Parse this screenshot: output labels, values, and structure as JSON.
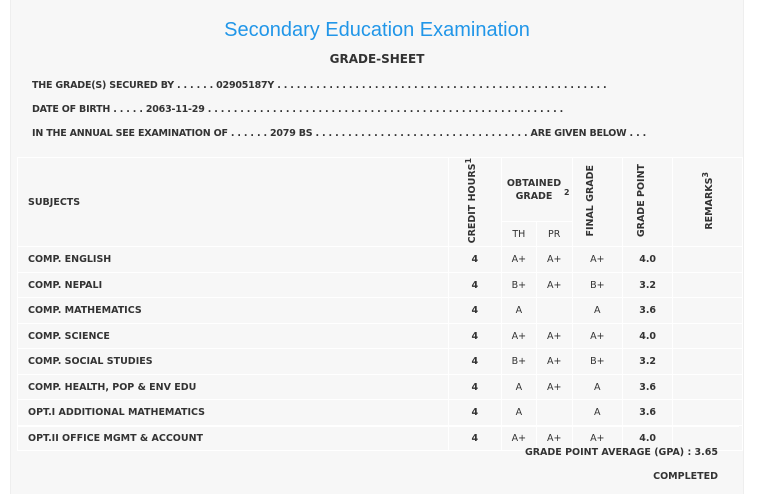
{
  "header": {
    "title": "Secondary Education Examination",
    "subtitle": "GRADE-SHEET"
  },
  "info": {
    "line1": "THE GRADE(S) SECURED BY . . . . . . 02905187Y . . . . . . . . . . . . . . . . . . . . . . . . . . . . . . . . . . . . . . . . . . . . . . . . . . .",
    "line2": "DATE OF BIRTH . . . . . 2063-11-29 . . . . . . . . . . . . . . . . . . . . . . . . . . . . . . . . . . . . . . . . . . . . . . . . . . . . . . .",
    "line3": "IN THE ANNUAL SEE EXAMINATION OF . . . . . . 2079 BS . . . . . . . . . . . . . . . . . . . . . . . . . . . . . . . . . ARE GIVEN BELOW . . ."
  },
  "table": {
    "headers": {
      "subjects": "SUBJECTS",
      "credit": "CREDIT HOURS",
      "credit_sup": "1",
      "obtained": "OBTAINED GRADE",
      "obtained_sup": "2",
      "th": "TH",
      "pr": "PR",
      "final": "FINAL GRADE",
      "gp": "GRADE POINT",
      "remarks": "REMARKS",
      "remarks_sup": "3"
    },
    "rows": [
      {
        "subject": "COMP. ENGLISH",
        "credit": "4",
        "th": "A+",
        "pr": "A+",
        "final": "A+",
        "gp": "4.0",
        "remarks": ""
      },
      {
        "subject": "COMP. NEPALI",
        "credit": "4",
        "th": "B+",
        "pr": "A+",
        "final": "B+",
        "gp": "3.2",
        "remarks": ""
      },
      {
        "subject": "COMP. MATHEMATICS",
        "credit": "4",
        "th": "A",
        "pr": "",
        "final": "A",
        "gp": "3.6",
        "remarks": ""
      },
      {
        "subject": "COMP. SCIENCE",
        "credit": "4",
        "th": "A+",
        "pr": "A+",
        "final": "A+",
        "gp": "4.0",
        "remarks": ""
      },
      {
        "subject": "COMP. SOCIAL STUDIES",
        "credit": "4",
        "th": "B+",
        "pr": "A+",
        "final": "B+",
        "gp": "3.2",
        "remarks": ""
      },
      {
        "subject": "COMP. HEALTH, POP & ENV EDU",
        "credit": "4",
        "th": "A",
        "pr": "A+",
        "final": "A",
        "gp": "3.6",
        "remarks": ""
      },
      {
        "subject": "OPT.I ADDITIONAL MATHEMATICS",
        "credit": "4",
        "th": "A",
        "pr": "",
        "final": "A",
        "gp": "3.6",
        "remarks": ""
      },
      {
        "subject": "OPT.II OFFICE MGMT & ACCOUNT",
        "credit": "4",
        "th": "A+",
        "pr": "A+",
        "final": "A+",
        "gp": "4.0",
        "remarks": ""
      }
    ]
  },
  "footer": {
    "gpa": "GRADE POINT AVERAGE (GPA) : 3.65",
    "status": "COMPLETED"
  }
}
